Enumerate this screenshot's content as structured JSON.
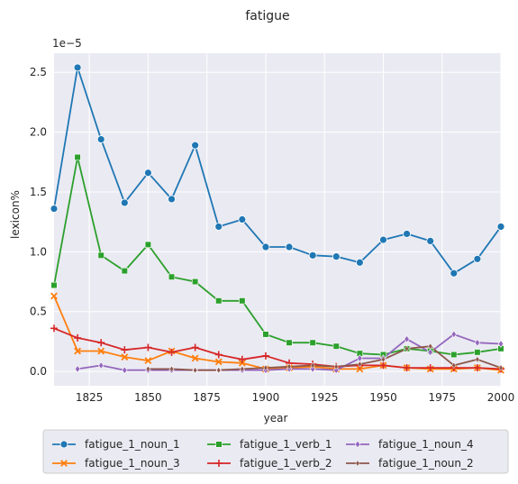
{
  "chart_data": {
    "type": "line",
    "title": "fatigue",
    "xlabel": "year",
    "ylabel": "lexicon%",
    "y_scale_label": "1e−5",
    "xlim": [
      1810,
      2000
    ],
    "ylim": [
      -0.12,
      2.66
    ],
    "x_ticks": [
      1825,
      1850,
      1875,
      1900,
      1925,
      1950,
      1975,
      2000
    ],
    "y_ticks": [
      0.0,
      0.5,
      1.0,
      1.5,
      2.0,
      2.5
    ],
    "y_tick_labels": [
      "0.0",
      "0.5",
      "1.0",
      "1.5",
      "2.0",
      "2.5"
    ],
    "grid": true,
    "legend_position": "bottom, below axes",
    "series": [
      {
        "name": "fatigue_1_noun_1",
        "color": "#1f77b4",
        "marker": "circle",
        "points": [
          [
            1810,
            1.36
          ],
          [
            1820,
            2.54
          ],
          [
            1830,
            1.94
          ],
          [
            1840,
            1.41
          ],
          [
            1850,
            1.66
          ],
          [
            1860,
            1.44
          ],
          [
            1870,
            1.89
          ],
          [
            1880,
            1.21
          ],
          [
            1890,
            1.27
          ],
          [
            1900,
            1.04
          ],
          [
            1910,
            1.04
          ],
          [
            1920,
            0.97
          ],
          [
            1930,
            0.96
          ],
          [
            1940,
            0.91
          ],
          [
            1950,
            1.1
          ],
          [
            1960,
            1.15
          ],
          [
            1970,
            1.09
          ],
          [
            1980,
            0.82
          ],
          [
            1990,
            0.94
          ],
          [
            2000,
            1.21
          ]
        ]
      },
      {
        "name": "fatigue_1_noun_3",
        "color": "#ff7f0e",
        "marker": "x",
        "points": [
          [
            1810,
            0.63
          ],
          [
            1820,
            0.17
          ],
          [
            1830,
            0.17
          ],
          [
            1840,
            0.12
          ],
          [
            1850,
            0.09
          ],
          [
            1860,
            0.17
          ],
          [
            1870,
            0.11
          ],
          [
            1880,
            0.08
          ],
          [
            1890,
            0.07
          ],
          [
            1900,
            0.02
          ],
          [
            1910,
            0.03
          ],
          [
            1920,
            0.04
          ],
          [
            1930,
            0.02
          ],
          [
            1940,
            0.02
          ],
          [
            1950,
            0.05
          ],
          [
            1960,
            0.03
          ],
          [
            1970,
            0.02
          ],
          [
            1980,
            0.02
          ],
          [
            1990,
            0.03
          ],
          [
            2000,
            0.01
          ]
        ]
      },
      {
        "name": "fatigue_1_verb_1",
        "color": "#2ca02c",
        "marker": "square",
        "points": [
          [
            1810,
            0.72
          ],
          [
            1820,
            1.79
          ],
          [
            1830,
            0.97
          ],
          [
            1840,
            0.84
          ],
          [
            1850,
            1.06
          ],
          [
            1860,
            0.79
          ],
          [
            1870,
            0.75
          ],
          [
            1880,
            0.59
          ],
          [
            1890,
            0.59
          ],
          [
            1900,
            0.31
          ],
          [
            1910,
            0.24
          ],
          [
            1920,
            0.24
          ],
          [
            1930,
            0.21
          ],
          [
            1940,
            0.15
          ],
          [
            1950,
            0.14
          ],
          [
            1960,
            0.19
          ],
          [
            1970,
            0.17
          ],
          [
            1980,
            0.14
          ],
          [
            1990,
            0.16
          ],
          [
            2000,
            0.19
          ]
        ]
      },
      {
        "name": "fatigue_1_verb_2",
        "color": "#d62728",
        "marker": "plus",
        "points": [
          [
            1810,
            0.36
          ],
          [
            1820,
            0.28
          ],
          [
            1830,
            0.24
          ],
          [
            1840,
            0.18
          ],
          [
            1850,
            0.2
          ],
          [
            1860,
            0.16
          ],
          [
            1870,
            0.2
          ],
          [
            1880,
            0.14
          ],
          [
            1890,
            0.1
          ],
          [
            1900,
            0.13
          ],
          [
            1910,
            0.07
          ],
          [
            1920,
            0.06
          ],
          [
            1930,
            0.04
          ],
          [
            1940,
            0.05
          ],
          [
            1950,
            0.05
          ],
          [
            1960,
            0.03
          ],
          [
            1970,
            0.03
          ],
          [
            1980,
            0.03
          ],
          [
            1990,
            0.03
          ],
          [
            2000,
            0.02
          ]
        ]
      },
      {
        "name": "fatigue_1_noun_4",
        "color": "#9467bd",
        "marker": "diamond",
        "points": [
          [
            1820,
            0.02
          ],
          [
            1830,
            0.05
          ],
          [
            1840,
            0.01
          ],
          [
            1850,
            0.01
          ],
          [
            1860,
            0.01
          ],
          [
            1870,
            0.01
          ],
          [
            1880,
            0.01
          ],
          [
            1890,
            0.01
          ],
          [
            1900,
            0.01
          ],
          [
            1910,
            0.02
          ],
          [
            1920,
            0.02
          ],
          [
            1930,
            0.01
          ],
          [
            1940,
            0.11
          ],
          [
            1950,
            0.11
          ],
          [
            1960,
            0.27
          ],
          [
            1970,
            0.16
          ],
          [
            1980,
            0.31
          ],
          [
            1990,
            0.24
          ],
          [
            2000,
            0.23
          ]
        ]
      },
      {
        "name": "fatigue_1_noun_2",
        "color": "#8c564b",
        "marker": "diamond-small",
        "points": [
          [
            1850,
            0.02
          ],
          [
            1860,
            0.02
          ],
          [
            1870,
            0.01
          ],
          [
            1880,
            0.01
          ],
          [
            1890,
            0.02
          ],
          [
            1900,
            0.03
          ],
          [
            1910,
            0.04
          ],
          [
            1920,
            0.05
          ],
          [
            1930,
            0.04
          ],
          [
            1940,
            0.06
          ],
          [
            1950,
            0.1
          ],
          [
            1960,
            0.19
          ],
          [
            1970,
            0.21
          ],
          [
            1980,
            0.05
          ],
          [
            1990,
            0.1
          ],
          [
            2000,
            0.03
          ]
        ]
      }
    ],
    "legend_order": [
      0,
      2,
      4,
      1,
      3,
      5
    ]
  }
}
